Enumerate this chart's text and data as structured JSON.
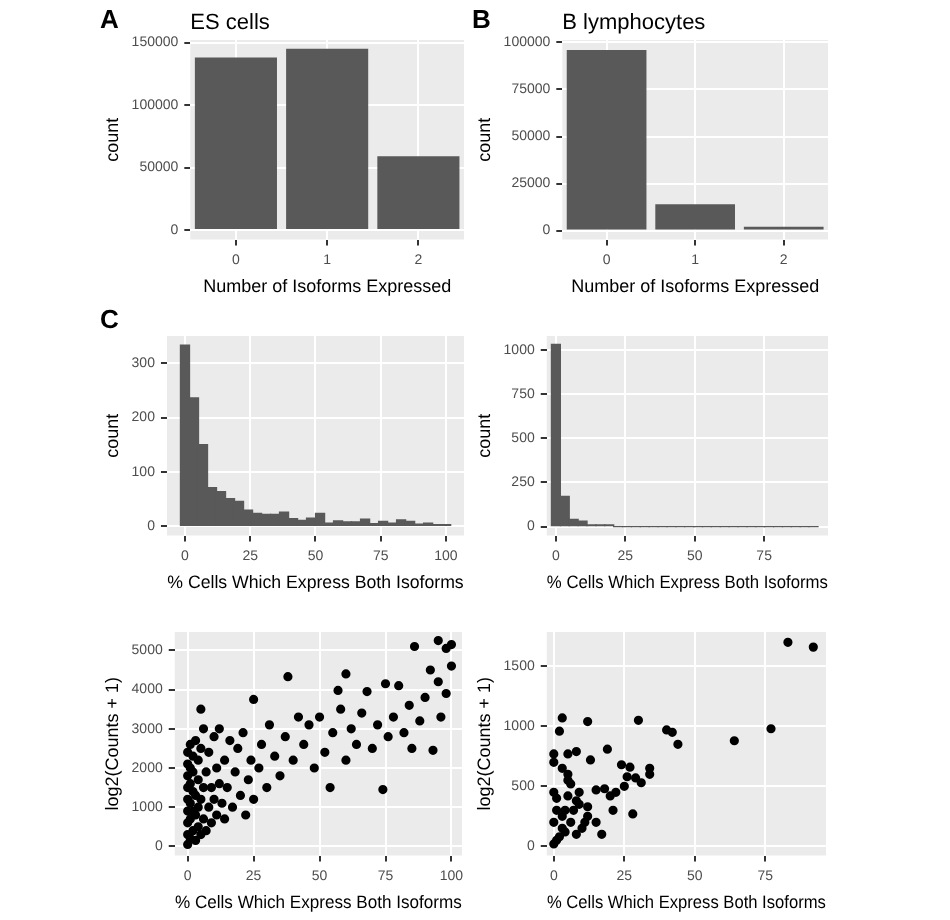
{
  "chart_data": [
    {
      "type": "bar",
      "title": "ES cells",
      "annotations": [
        "A"
      ],
      "xlabel": "Number of Isoforms Expressed",
      "ylabel": "count",
      "categories": [
        "0",
        "1",
        "2"
      ],
      "values": [
        138000,
        145000,
        59000
      ],
      "color": "#595959",
      "ylim": [
        -7600,
        152000
      ],
      "yticks": [
        0,
        50000,
        100000,
        150000
      ],
      "grid": true
    },
    {
      "type": "bar",
      "title": "B lymphocytes",
      "annotations": [
        "B"
      ],
      "xlabel": "Number of Isoforms Expressed",
      "ylabel": "count",
      "categories": [
        "0",
        "1",
        "2"
      ],
      "values": [
        96000,
        14000,
        2000
      ],
      "color": "#595959",
      "ylim": [
        -4800,
        101300
      ],
      "yticks": [
        0,
        25000,
        50000,
        75000,
        100000
      ],
      "grid": true
    },
    {
      "type": "histogram",
      "annotations": [
        "C"
      ],
      "xlabel": "% Cells Which Express Both Isoforms",
      "ylabel": "count",
      "bins": [
        -1.72,
        1.73,
        5.18,
        8.63,
        12.08,
        15.53,
        18.98,
        22.43,
        25.88,
        29.33,
        32.78,
        36.23,
        39.68,
        43.13,
        46.58,
        50.03,
        53.48,
        56.93,
        60.38,
        63.83,
        67.28,
        70.73,
        74.18,
        77.63,
        81.08,
        84.53,
        87.98,
        91.43,
        94.88,
        98.33,
        101.78
      ],
      "values": [
        333,
        236,
        150,
        71,
        64,
        51,
        46,
        30,
        24,
        22,
        22,
        26,
        14,
        11,
        15,
        24,
        6,
        10,
        8,
        8,
        13,
        5,
        9,
        6,
        12,
        9,
        4,
        6,
        3,
        3
      ],
      "color": "#595959",
      "xlim": [
        -6.9,
        106.9
      ],
      "xticks": [
        0,
        25,
        50,
        75,
        100
      ],
      "ylim": [
        -17,
        350
      ],
      "yticks": [
        0,
        100,
        200,
        300
      ],
      "grid": true
    },
    {
      "type": "histogram",
      "xlabel": "% Cells Which Express Both Isoforms",
      "ylabel": "count",
      "bins": [
        -1.6,
        1.6,
        4.8,
        8,
        11.2,
        14.4,
        17.6,
        20.8,
        24,
        27.2,
        30.4,
        33.6,
        36.8,
        40,
        43.2,
        46.4,
        49.6,
        52.8,
        56,
        59.2,
        62.4,
        65.6,
        68.8,
        72,
        75.2,
        78.4,
        81.6,
        84.8,
        88,
        91.2,
        94.4
      ],
      "values": [
        1030,
        170,
        40,
        30,
        10,
        10,
        10,
        0,
        0,
        0,
        0,
        0,
        0,
        0,
        0,
        0,
        0,
        0,
        0,
        0,
        0,
        0,
        0,
        0,
        0,
        0,
        0,
        0,
        0,
        0
      ],
      "color": "#595959",
      "xlim": [
        -3.3,
        98
      ],
      "xticks": [
        0,
        25,
        50,
        75
      ],
      "ylim": [
        -51,
        1077
      ],
      "yticks": [
        0,
        250,
        500,
        750,
        1000
      ],
      "grid": true
    },
    {
      "type": "scatter",
      "xlabel": "% Cells Which Express Both Isoforms",
      "ylabel": "log2(Counts + 1)",
      "marker": "circle",
      "xlim": [
        -4.9,
        104
      ],
      "xticks": [
        0,
        25,
        50,
        75,
        100
      ],
      "ylim": [
        -236,
        5470
      ],
      "yticks": [
        0,
        1000,
        2000,
        3000,
        4000,
        5000
      ],
      "grid": true,
      "series": [
        {
          "color": "#000000",
          "x": [
            0,
            0,
            0,
            0,
            0,
            0,
            0,
            0,
            0,
            1,
            1,
            1,
            1,
            1,
            1,
            2,
            2,
            2,
            2,
            2,
            3,
            3,
            3,
            3,
            4,
            4,
            4,
            4,
            5,
            5,
            5,
            5,
            6,
            6,
            6,
            7,
            7,
            8,
            8,
            9,
            9,
            10,
            10,
            11,
            11,
            12,
            12,
            13,
            14,
            14,
            15,
            16,
            17,
            18,
            19,
            20,
            21,
            22,
            23,
            24,
            25,
            25,
            27,
            28,
            30,
            31,
            33,
            35,
            37,
            38,
            40,
            42,
            44,
            46,
            48,
            50,
            52,
            54,
            55,
            57,
            58,
            60,
            60,
            62,
            64,
            66,
            68,
            70,
            72,
            74,
            75,
            76,
            78,
            80,
            82,
            84,
            85,
            86,
            88,
            90,
            92,
            93,
            95,
            95,
            96,
            98,
            98,
            100,
            100
          ],
          "values": [
            50,
            300,
            600,
            900,
            1200,
            1500,
            1800,
            2100,
            2400,
            200,
            700,
            1100,
            1600,
            2000,
            2600,
            400,
            900,
            1400,
            1900,
            2300,
            150,
            800,
            1300,
            2700,
            500,
            1000,
            1700,
            2200,
            3500,
            300,
            1200,
            2500,
            700,
            1500,
            3000,
            400,
            1900,
            1000,
            2400,
            600,
            1500,
            1200,
            2800,
            800,
            2000,
            1600,
            3000,
            1100,
            2200,
            700,
            1500,
            2700,
            1000,
            1900,
            2500,
            1300,
            2900,
            800,
            1700,
            2200,
            3750,
            1200,
            2000,
            2600,
            1500,
            3100,
            2300,
            1800,
            2800,
            4330,
            2200,
            3300,
            2600,
            3100,
            2000,
            3300,
            2400,
            1500,
            2900,
            3980,
            3500,
            4400,
            2200,
            3000,
            2600,
            3400,
            3950,
            2500,
            3100,
            1450,
            4150,
            2800,
            3300,
            4100,
            2900,
            3600,
            2500,
            5100,
            3200,
            3800,
            4500,
            2450,
            5250,
            4200,
            3300,
            5050,
            3900,
            5150,
            4600
          ]
        }
      ]
    },
    {
      "type": "scatter",
      "xlabel": "% Cells Which Express Both Isoforms",
      "ylabel": "log2(Counts + 1)",
      "marker": "circle",
      "xlim": [
        -2.5,
        96.5
      ],
      "xticks": [
        0,
        25,
        50,
        75
      ],
      "ylim": [
        -77,
        1786
      ],
      "yticks": [
        0,
        500,
        1000,
        1500
      ],
      "grid": true,
      "series": [
        {
          "color": "#000000",
          "x": [
            83,
            92,
            77,
            64,
            40,
            42,
            44,
            30,
            12,
            3,
            2,
            0,
            5,
            8,
            19,
            13,
            0,
            3,
            5,
            24,
            27,
            34,
            34,
            29,
            31,
            26,
            25,
            22,
            20,
            15,
            9,
            18,
            17,
            28,
            21,
            12,
            8,
            5,
            6,
            4,
            1,
            0,
            2,
            3,
            6,
            10,
            12,
            15,
            0,
            1,
            2,
            4,
            7,
            9,
            11,
            0,
            1,
            3,
            5,
            8
          ],
          "values": [
            1700,
            1660,
            980,
            880,
            970,
            950,
            850,
            1050,
            1040,
            1070,
            960,
            770,
            770,
            790,
            810,
            720,
            700,
            650,
            600,
            680,
            660,
            650,
            600,
            570,
            530,
            580,
            500,
            450,
            420,
            470,
            450,
            480,
            100,
            270,
            300,
            330,
            380,
            550,
            520,
            300,
            400,
            200,
            null,
            250,
            200,
            150,
            250,
            200,
            20,
            50,
            80,
            120,
            300,
            350,
            200,
            450,
            300,
            150,
            420,
            100
          ]
        }
      ]
    }
  ]
}
